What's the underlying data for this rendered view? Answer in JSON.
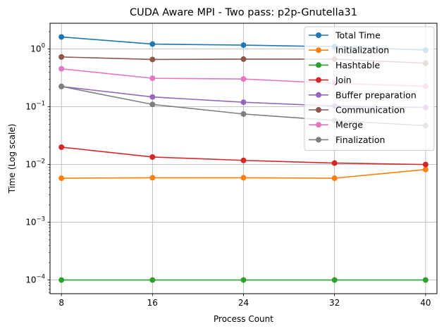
{
  "chart_data": {
    "type": "line",
    "title": "CUDA Aware MPI - Two pass: p2p-Gnutella31",
    "xlabel": "Process Count",
    "ylabel": "Time (Log scale)",
    "yscale": "log",
    "x": [
      8,
      16,
      24,
      32,
      40
    ],
    "xticks": [
      "8",
      "16",
      "24",
      "32",
      "40"
    ],
    "xlim": [
      7,
      41
    ],
    "ylim": [
      5.8e-05,
      2.8
    ],
    "yticks": [
      {
        "value": 0.0001,
        "base": "10",
        "exp": "−4"
      },
      {
        "value": 0.001,
        "base": "10",
        "exp": "−3"
      },
      {
        "value": 0.01,
        "base": "10",
        "exp": "−2"
      },
      {
        "value": 0.1,
        "base": "10",
        "exp": "−1"
      },
      {
        "value": 1,
        "base": "10",
        "exp": "0"
      }
    ],
    "grid": true,
    "legend_position": "upper right",
    "series": [
      {
        "name": "Total Time",
        "color": "#1f77b4",
        "values": [
          1.62,
          1.22,
          1.17,
          1.1,
          0.96
        ]
      },
      {
        "name": "Initialization",
        "color": "#ff7f0e",
        "values": [
          0.0058,
          0.0059,
          0.0059,
          0.0058,
          0.0082
        ]
      },
      {
        "name": "Hashtable",
        "color": "#2ca02c",
        "values": [
          0.0001,
          0.0001,
          0.0001,
          0.0001,
          0.0001
        ]
      },
      {
        "name": "Join",
        "color": "#d62728",
        "values": [
          0.02,
          0.0135,
          0.0118,
          0.0106,
          0.01
        ]
      },
      {
        "name": "Buffer preparation",
        "color": "#9467bd",
        "values": [
          0.225,
          0.148,
          0.12,
          0.103,
          0.097
        ]
      },
      {
        "name": "Communication",
        "color": "#8c564b",
        "values": [
          0.73,
          0.66,
          0.67,
          0.67,
          0.57
        ]
      },
      {
        "name": "Merge",
        "color": "#e377c2",
        "values": [
          0.455,
          0.312,
          0.303,
          0.255,
          0.227
        ]
      },
      {
        "name": "Finalization",
        "color": "#7f7f7f",
        "values": [
          0.225,
          0.11,
          0.075,
          0.058,
          0.047
        ]
      }
    ]
  }
}
